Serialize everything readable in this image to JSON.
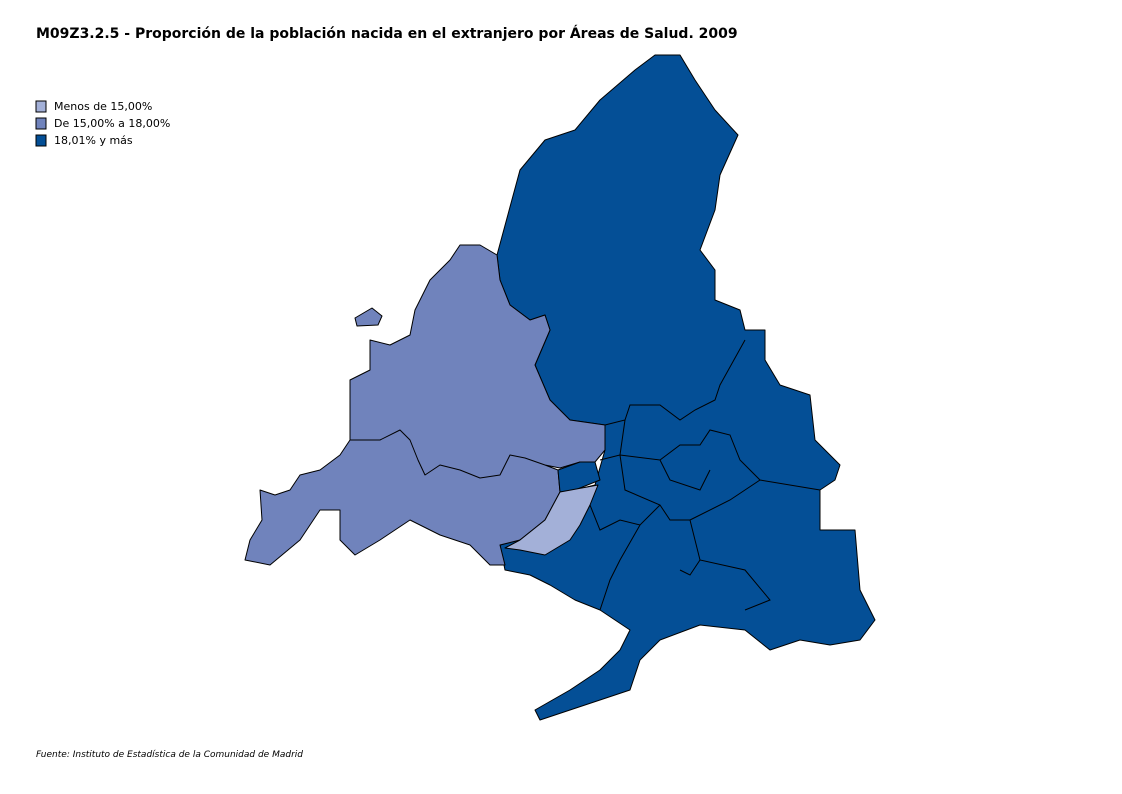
{
  "title": "M09Z3.2.5 - Proporción de la población nacida en el extranjero por Áreas de Salud. 2009",
  "legend": {
    "items": [
      {
        "label": "Menos de 15,00%",
        "color": "#a3b0d8"
      },
      {
        "label": "De 15,00% a 18,00%",
        "color": "#7083bc"
      },
      {
        "label": "18,01% y más",
        "color": "#044f96"
      }
    ]
  },
  "source": "Fuente: Instituto de Estadística de la Comunidad de Madrid"
}
